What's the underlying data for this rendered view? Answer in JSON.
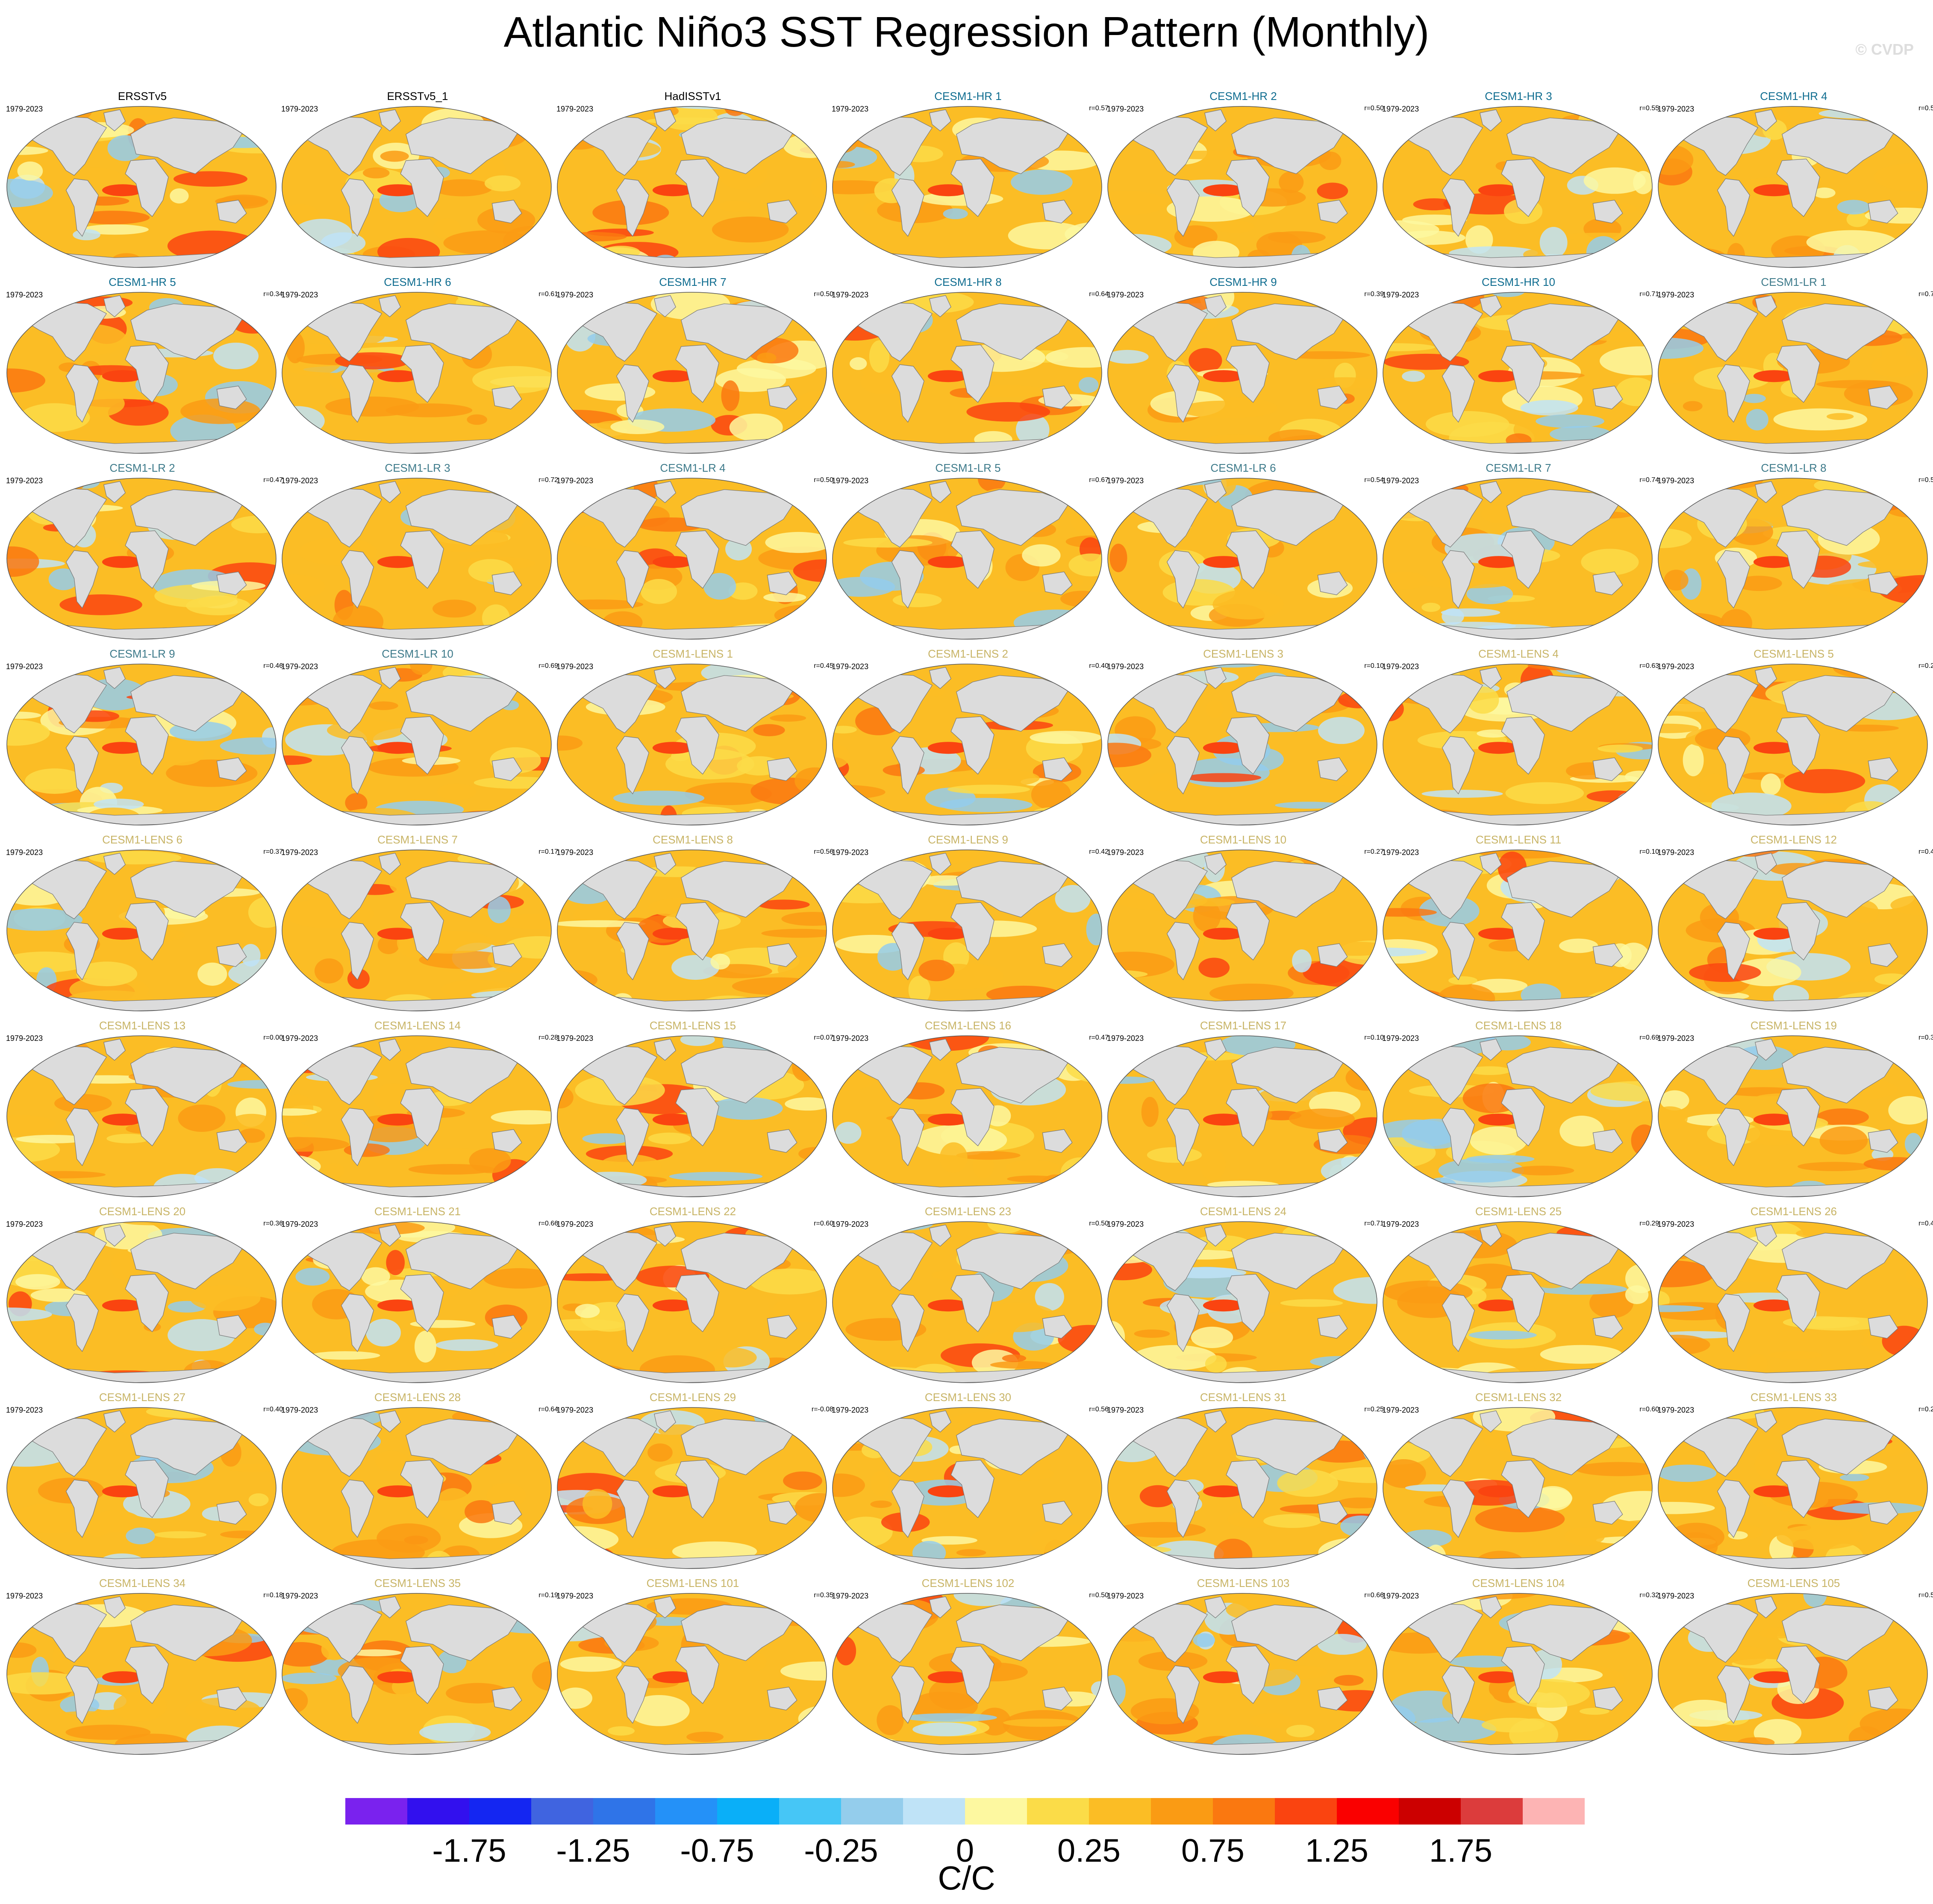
{
  "title": "Atlantic Niño3 SST Regression Pattern (Monthly)",
  "watermark": "© CVDP",
  "period_label": "1979-2023",
  "colors": {
    "observations": "#000000",
    "cesm1_hr": "#0e6c8f",
    "cesm1_lr": "#3d7a8a",
    "cesm1_lens": "#c8b466",
    "land": "#dcdcdc"
  },
  "panels": [
    {
      "name": "ERSSTv5",
      "group": "observations",
      "corr": ""
    },
    {
      "name": "ERSSTv5_1",
      "group": "observations",
      "corr": ""
    },
    {
      "name": "HadISSTv1",
      "group": "observations",
      "corr": ""
    },
    {
      "name": "CESM1-HR 1",
      "group": "cesm1_hr",
      "corr": "r=0.57"
    },
    {
      "name": "CESM1-HR 2",
      "group": "cesm1_hr",
      "corr": "r=0.50"
    },
    {
      "name": "CESM1-HR 3",
      "group": "cesm1_hr",
      "corr": "r=0.55"
    },
    {
      "name": "CESM1-HR 4",
      "group": "cesm1_hr",
      "corr": "r=0.5"
    },
    {
      "name": "CESM1-HR 5",
      "group": "cesm1_hr",
      "corr": "r=0.34"
    },
    {
      "name": "CESM1-HR 6",
      "group": "cesm1_hr",
      "corr": "r=0.61"
    },
    {
      "name": "CESM1-HR 7",
      "group": "cesm1_hr",
      "corr": "r=0.50"
    },
    {
      "name": "CESM1-HR 8",
      "group": "cesm1_hr",
      "corr": "r=0.64"
    },
    {
      "name": "CESM1-HR 9",
      "group": "cesm1_hr",
      "corr": "r=0.39"
    },
    {
      "name": "CESM1-HR 10",
      "group": "cesm1_hr",
      "corr": "r=0.71"
    },
    {
      "name": "CESM1-LR 1",
      "group": "cesm1_lr",
      "corr": "r=0.7"
    },
    {
      "name": "CESM1-LR 2",
      "group": "cesm1_lr",
      "corr": "r=0.47"
    },
    {
      "name": "CESM1-LR 3",
      "group": "cesm1_lr",
      "corr": "r=0.72"
    },
    {
      "name": "CESM1-LR 4",
      "group": "cesm1_lr",
      "corr": "r=0.50"
    },
    {
      "name": "CESM1-LR 5",
      "group": "cesm1_lr",
      "corr": "r=0.67"
    },
    {
      "name": "CESM1-LR 6",
      "group": "cesm1_lr",
      "corr": "r=0.54"
    },
    {
      "name": "CESM1-LR 7",
      "group": "cesm1_lr",
      "corr": "r=0.74"
    },
    {
      "name": "CESM1-LR 8",
      "group": "cesm1_lr",
      "corr": "r=0.5"
    },
    {
      "name": "CESM1-LR 9",
      "group": "cesm1_lr",
      "corr": "r=0.46"
    },
    {
      "name": "CESM1-LR 10",
      "group": "cesm1_lr",
      "corr": "r=0.69"
    },
    {
      "name": "CESM1-LENS 1",
      "group": "cesm1_lens",
      "corr": "r=0.45"
    },
    {
      "name": "CESM1-LENS 2",
      "group": "cesm1_lens",
      "corr": "r=0.40"
    },
    {
      "name": "CESM1-LENS 3",
      "group": "cesm1_lens",
      "corr": "r=0.10"
    },
    {
      "name": "CESM1-LENS 4",
      "group": "cesm1_lens",
      "corr": "r=0.63"
    },
    {
      "name": "CESM1-LENS 5",
      "group": "cesm1_lens",
      "corr": "r=0.2"
    },
    {
      "name": "CESM1-LENS 6",
      "group": "cesm1_lens",
      "corr": "r=0.37"
    },
    {
      "name": "CESM1-LENS 7",
      "group": "cesm1_lens",
      "corr": "r=0.17"
    },
    {
      "name": "CESM1-LENS 8",
      "group": "cesm1_lens",
      "corr": "r=0.56"
    },
    {
      "name": "CESM1-LENS 9",
      "group": "cesm1_lens",
      "corr": "r=0.42"
    },
    {
      "name": "CESM1-LENS 10",
      "group": "cesm1_lens",
      "corr": "r=0.27"
    },
    {
      "name": "CESM1-LENS 11",
      "group": "cesm1_lens",
      "corr": "r=0.10"
    },
    {
      "name": "CESM1-LENS 12",
      "group": "cesm1_lens",
      "corr": "r=0.4"
    },
    {
      "name": "CESM1-LENS 13",
      "group": "cesm1_lens",
      "corr": "r=0.00"
    },
    {
      "name": "CESM1-LENS 14",
      "group": "cesm1_lens",
      "corr": "r=0.28"
    },
    {
      "name": "CESM1-LENS 15",
      "group": "cesm1_lens",
      "corr": "r=0.07"
    },
    {
      "name": "CESM1-LENS 16",
      "group": "cesm1_lens",
      "corr": "r=0.47"
    },
    {
      "name": "CESM1-LENS 17",
      "group": "cesm1_lens",
      "corr": "r=0.10"
    },
    {
      "name": "CESM1-LENS 18",
      "group": "cesm1_lens",
      "corr": "r=0.69"
    },
    {
      "name": "CESM1-LENS 19",
      "group": "cesm1_lens",
      "corr": "r=0.3"
    },
    {
      "name": "CESM1-LENS 20",
      "group": "cesm1_lens",
      "corr": "r=0.36"
    },
    {
      "name": "CESM1-LENS 21",
      "group": "cesm1_lens",
      "corr": "r=0.66"
    },
    {
      "name": "CESM1-LENS 22",
      "group": "cesm1_lens",
      "corr": "r=0.60"
    },
    {
      "name": "CESM1-LENS 23",
      "group": "cesm1_lens",
      "corr": "r=0.50"
    },
    {
      "name": "CESM1-LENS 24",
      "group": "cesm1_lens",
      "corr": "r=0.71"
    },
    {
      "name": "CESM1-LENS 25",
      "group": "cesm1_lens",
      "corr": "r=0.29"
    },
    {
      "name": "CESM1-LENS 26",
      "group": "cesm1_lens",
      "corr": "r=0.4"
    },
    {
      "name": "CESM1-LENS 27",
      "group": "cesm1_lens",
      "corr": "r=0.40"
    },
    {
      "name": "CESM1-LENS 28",
      "group": "cesm1_lens",
      "corr": "r=0.64"
    },
    {
      "name": "CESM1-LENS 29",
      "group": "cesm1_lens",
      "corr": "r=-0.08"
    },
    {
      "name": "CESM1-LENS 30",
      "group": "cesm1_lens",
      "corr": "r=0.56"
    },
    {
      "name": "CESM1-LENS 31",
      "group": "cesm1_lens",
      "corr": "r=0.25"
    },
    {
      "name": "CESM1-LENS 32",
      "group": "cesm1_lens",
      "corr": "r=0.60"
    },
    {
      "name": "CESM1-LENS 33",
      "group": "cesm1_lens",
      "corr": "r=0.2"
    },
    {
      "name": "CESM1-LENS 34",
      "group": "cesm1_lens",
      "corr": "r=0.18"
    },
    {
      "name": "CESM1-LENS 35",
      "group": "cesm1_lens",
      "corr": "r=0.19"
    },
    {
      "name": "CESM1-LENS 101",
      "group": "cesm1_lens",
      "corr": "r=0.35"
    },
    {
      "name": "CESM1-LENS 102",
      "group": "cesm1_lens",
      "corr": "r=0.50"
    },
    {
      "name": "CESM1-LENS 103",
      "group": "cesm1_lens",
      "corr": "r=0.66"
    },
    {
      "name": "CESM1-LENS 104",
      "group": "cesm1_lens",
      "corr": "r=0.32"
    },
    {
      "name": "CESM1-LENS 105",
      "group": "cesm1_lens",
      "corr": "r=0.5"
    }
  ],
  "chart_data": {
    "type": "heatmap",
    "title": "Atlantic Niño3 SST Regression Pattern (Monthly)",
    "period": "1979-2023",
    "layout": "9 rows x 7 columns of global maps",
    "colorbar": {
      "units": "C/C",
      "tick_labels": [
        "-1.75",
        "-1.25",
        "-0.75",
        "-0.25",
        "0",
        "0.25",
        "0.75",
        "1.25",
        "1.75"
      ],
      "colors": [
        "#7a22ee",
        "#3210ee",
        "#1426f2",
        "#4064e0",
        "#2f74e8",
        "#2491f8",
        "#0aaff8",
        "#46c6f6",
        "#94cdec",
        "#bfe3f7",
        "#fdf8a0",
        "#fbdc48",
        "#fbbd25",
        "#fa9b14",
        "#fa7810",
        "#fa4410",
        "#fa0000",
        "#cc0000",
        "#dc3c3c",
        "#fdb4b4"
      ]
    }
  }
}
